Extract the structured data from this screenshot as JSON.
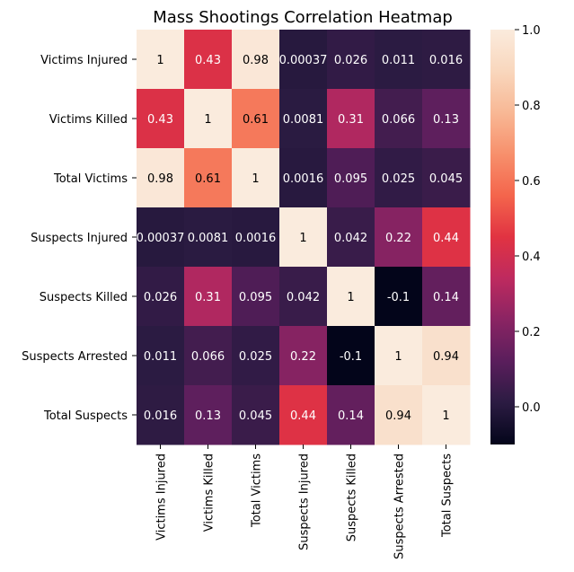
{
  "chart_data": {
    "type": "heatmap",
    "title": "Mass Shootings Correlation Heatmap",
    "xlabel": "",
    "ylabel": "",
    "rows": [
      "Victims Injured",
      "Victims Killed",
      "Total Victims",
      "Suspects Injured",
      "Suspects Killed",
      "Suspects Arrested",
      "Total Suspects"
    ],
    "columns": [
      "Victims Injured",
      "Victims Killed",
      "Total Victims",
      "Suspects Injured",
      "Suspects Killed",
      "Suspects Arrested",
      "Total Suspects"
    ],
    "values": [
      [
        1,
        0.43,
        0.98,
        0.00037,
        0.026,
        0.011,
        0.016
      ],
      [
        0.43,
        1,
        0.61,
        0.0081,
        0.31,
        0.066,
        0.13
      ],
      [
        0.98,
        0.61,
        1,
        0.0016,
        0.095,
        0.025,
        0.045
      ],
      [
        0.00037,
        0.0081,
        0.0016,
        1,
        0.042,
        0.22,
        0.44
      ],
      [
        0.026,
        0.31,
        0.095,
        0.042,
        1,
        -0.1,
        0.14
      ],
      [
        0.011,
        0.066,
        0.025,
        0.22,
        -0.1,
        1,
        0.94
      ],
      [
        0.016,
        0.13,
        0.045,
        0.44,
        0.14,
        0.94,
        1
      ]
    ],
    "cell_labels": [
      [
        "1",
        "0.43",
        "0.98",
        "0.00037",
        "0.026",
        "0.011",
        "0.016"
      ],
      [
        "0.43",
        "1",
        "0.61",
        "0.0081",
        "0.31",
        "0.066",
        "0.13"
      ],
      [
        "0.98",
        "0.61",
        "1",
        "0.0016",
        "0.095",
        "0.025",
        "0.045"
      ],
      [
        "0.00037",
        "0.0081",
        "0.0016",
        "1",
        "0.042",
        "0.22",
        "0.44"
      ],
      [
        "0.026",
        "0.31",
        "0.095",
        "0.042",
        "1",
        "-0.1",
        "0.14"
      ],
      [
        "0.011",
        "0.066",
        "0.025",
        "0.22",
        "-0.1",
        "1",
        "0.94"
      ],
      [
        "0.016",
        "0.13",
        "0.045",
        "0.44",
        "0.14",
        "0.94",
        "1"
      ]
    ],
    "colorbar": {
      "vmin": -0.1,
      "vmax": 1.0,
      "ticks": [
        0.0,
        0.2,
        0.4,
        0.6,
        0.8,
        1.0
      ],
      "tick_labels": [
        "0.0",
        "0.2",
        "0.4",
        "0.6",
        "0.8",
        "1.0"
      ],
      "placement": "right"
    },
    "colormap": "rocket",
    "colormap_stops": [
      "#03051a",
      "#2b1b42",
      "#5a1e5c",
      "#8a2463",
      "#be2a5f",
      "#e13342",
      "#f4654c",
      "#f7906c",
      "#f8b895",
      "#f9d7bd",
      "#faebdd"
    ],
    "annot_color_dark": "#ffffff",
    "annot_color_light": "#000000"
  }
}
